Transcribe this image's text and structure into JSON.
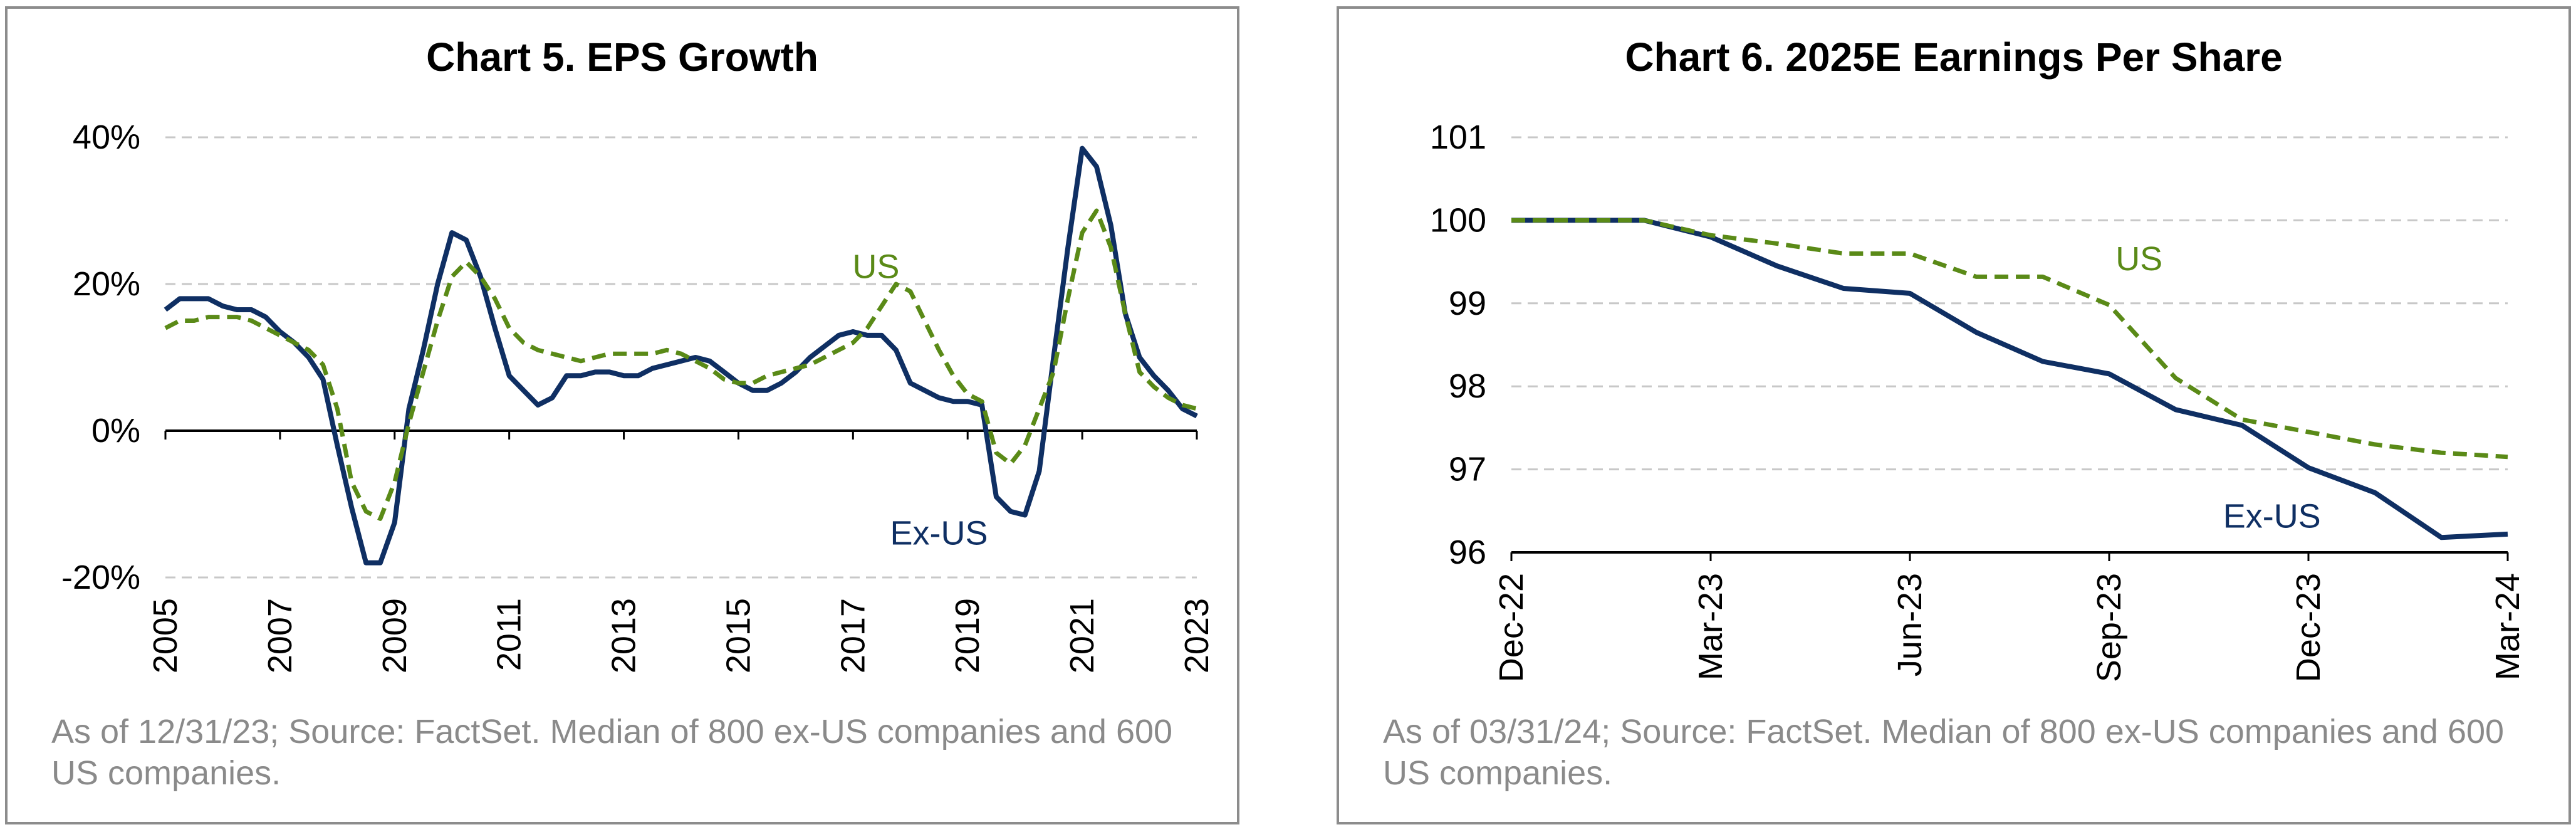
{
  "colors": {
    "us": "#5a8a17",
    "ex_us": "#0f2f63",
    "grid": "#c8c8c8",
    "zero_line": "#000000",
    "note": "#8a8a8a"
  },
  "chart_data": [
    {
      "type": "line",
      "title": "Chart 5. EPS Growth",
      "xlabel": "",
      "ylabel": "",
      "x_ticks": [
        "2005",
        "2007",
        "2009",
        "2011",
        "2013",
        "2015",
        "2017",
        "2019",
        "2021",
        "2023"
      ],
      "y_ticks": [
        "40%",
        "20%",
        "0%",
        "-20%"
      ],
      "ylim": [
        -20,
        40
      ],
      "xlim": [
        2005,
        2023
      ],
      "grid": true,
      "note": "As of 12/31/23; Source: FactSet. Median of 800 ex-US companies and 600 US companies.",
      "series": [
        {
          "name": "Ex-US",
          "style": "solid",
          "x": [
            2005,
            2005.25,
            2005.5,
            2005.75,
            2006,
            2006.25,
            2006.5,
            2006.75,
            2007,
            2007.25,
            2007.5,
            2007.75,
            2008,
            2008.25,
            2008.5,
            2008.75,
            2009,
            2009.25,
            2009.5,
            2009.75,
            2010,
            2010.25,
            2010.5,
            2010.75,
            2011,
            2011.25,
            2011.5,
            2011.75,
            2012,
            2012.25,
            2012.5,
            2012.75,
            2013,
            2013.25,
            2013.5,
            2013.75,
            2014,
            2014.25,
            2014.5,
            2014.75,
            2015,
            2015.25,
            2015.5,
            2015.75,
            2016,
            2016.25,
            2016.5,
            2016.75,
            2017,
            2017.25,
            2017.5,
            2017.75,
            2018,
            2018.25,
            2018.5,
            2018.75,
            2019,
            2019.25,
            2019.5,
            2019.75,
            2020,
            2020.25,
            2020.5,
            2020.75,
            2021,
            2021.25,
            2021.5,
            2021.75,
            2022,
            2022.25,
            2022.5,
            2022.75,
            2023
          ],
          "values": [
            16.5,
            18,
            18,
            18,
            17,
            16.5,
            16.5,
            15.5,
            13.5,
            12,
            10,
            7,
            -2,
            -10.5,
            -18,
            -18,
            -12.5,
            3,
            11,
            20,
            27,
            26,
            21,
            14,
            7.5,
            5.5,
            3.5,
            4.5,
            7.5,
            7.5,
            8,
            8,
            7.5,
            7.5,
            8.5,
            9,
            9.5,
            10,
            9.5,
            8,
            6.5,
            5.5,
            5.5,
            6.5,
            8,
            10,
            11.5,
            13,
            13.5,
            13,
            13,
            11,
            6.5,
            5.5,
            4.5,
            4,
            4,
            3.5,
            -9,
            -11,
            -11.5,
            -5.5,
            10,
            25,
            38.5,
            36,
            28,
            16,
            10,
            7.5,
            5.5,
            3,
            2
          ]
        },
        {
          "name": "US",
          "style": "dashed",
          "x": [
            2005,
            2005.25,
            2005.5,
            2005.75,
            2006,
            2006.25,
            2006.5,
            2006.75,
            2007,
            2007.25,
            2007.5,
            2007.75,
            2008,
            2008.25,
            2008.5,
            2008.75,
            2009,
            2009.25,
            2009.5,
            2009.75,
            2010,
            2010.25,
            2010.5,
            2010.75,
            2011,
            2011.25,
            2011.5,
            2011.75,
            2012,
            2012.25,
            2012.5,
            2012.75,
            2013,
            2013.25,
            2013.5,
            2013.75,
            2014,
            2014.25,
            2014.5,
            2014.75,
            2015,
            2015.25,
            2015.5,
            2015.75,
            2016,
            2016.25,
            2016.5,
            2016.75,
            2017,
            2017.25,
            2017.5,
            2017.75,
            2018,
            2018.25,
            2018.5,
            2018.75,
            2019,
            2019.25,
            2019.5,
            2019.75,
            2020,
            2020.25,
            2020.5,
            2020.75,
            2021,
            2021.25,
            2021.5,
            2021.75,
            2022,
            2022.25,
            2022.5,
            2022.75,
            2023
          ],
          "values": [
            14,
            15,
            15,
            15.5,
            15.5,
            15.5,
            15,
            14,
            13,
            12,
            11,
            9,
            3,
            -7,
            -11,
            -12,
            -7,
            1,
            8,
            15,
            21,
            23,
            21,
            18,
            14,
            12,
            11,
            10.5,
            10,
            9.5,
            10,
            10.5,
            10.5,
            10.5,
            10.5,
            11,
            10.5,
            9.5,
            8.5,
            7,
            6.5,
            6.5,
            7.5,
            8,
            8.5,
            9,
            10,
            11,
            12,
            14,
            17,
            20,
            19,
            15,
            11,
            7.5,
            5,
            4,
            -3,
            -4.5,
            -2,
            3,
            8,
            18,
            27,
            30,
            25,
            16,
            8,
            6,
            4.5,
            3.5,
            3
          ]
        }
      ],
      "annotations": [
        {
          "text": "US",
          "series": "US"
        },
        {
          "text": "Ex-US",
          "series": "Ex-US"
        }
      ]
    },
    {
      "type": "line",
      "title": "Chart 6. 2025E Earnings Per Share",
      "xlabel": "",
      "ylabel": "",
      "x_ticks": [
        "Dec-22",
        "Mar-23",
        "Jun-23",
        "Sep-23",
        "Dec-23",
        "Mar-24"
      ],
      "y_ticks": [
        "101",
        "100",
        "99",
        "98",
        "97",
        "96"
      ],
      "ylim": [
        96,
        101
      ],
      "xlim": [
        0,
        15
      ],
      "grid": true,
      "note": "As of 03/31/24; Source: FactSet. Median of 800 ex-US companies and 600 US companies.",
      "series": [
        {
          "name": "Ex-US",
          "style": "solid",
          "x": [
            0,
            1,
            2,
            3,
            4,
            5,
            6,
            7,
            8,
            9,
            10,
            11,
            12,
            13,
            14,
            15
          ],
          "values": [
            100,
            100,
            100,
            99.8,
            99.45,
            99.18,
            99.12,
            98.65,
            98.3,
            98.15,
            97.72,
            97.53,
            97.02,
            96.72,
            96.18,
            96.22
          ]
        },
        {
          "name": "US",
          "style": "dashed",
          "x": [
            0,
            1,
            2,
            3,
            4,
            5,
            6,
            7,
            8,
            9,
            10,
            11,
            12,
            13,
            14,
            15
          ],
          "values": [
            100,
            100,
            100,
            99.82,
            99.72,
            99.6,
            99.6,
            99.32,
            99.32,
            98.98,
            98.1,
            97.6,
            97.45,
            97.3,
            97.2,
            97.15
          ]
        }
      ],
      "annotations": [
        {
          "text": "US",
          "series": "US"
        },
        {
          "text": "Ex-US",
          "series": "Ex-US"
        }
      ]
    }
  ]
}
